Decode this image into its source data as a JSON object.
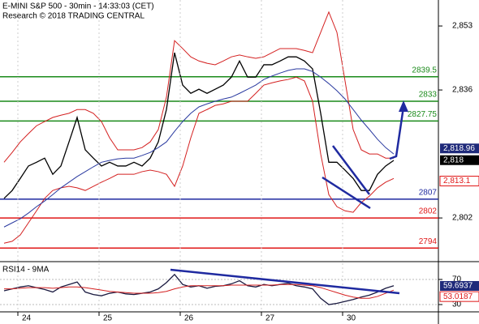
{
  "chart_data": [
    {
      "type": "line",
      "title": "E-MINI S&P 500 - 30min - 14:33:03 (CET)",
      "subtitle": "Research © 2018 TRADING CENTRAL",
      "categories": [
        null,
        null,
        "24",
        null,
        null,
        null,
        null,
        null,
        null,
        null,
        null,
        null,
        "25",
        null,
        null,
        null,
        null,
        null,
        null,
        null,
        null,
        null,
        "26",
        null,
        null,
        null,
        null,
        null,
        null,
        null,
        null,
        null,
        "27",
        null,
        null,
        null,
        null,
        null,
        null,
        null,
        null,
        null,
        "30",
        null,
        null,
        null,
        null,
        null,
        null
      ],
      "series": [
        {
          "color": "#000000",
          "values": [
            2807.2,
            2809.3,
            2812.5,
            2815.8,
            2816.8,
            2817.9,
            2813.6,
            2815.8,
            2822.2,
            2828.7,
            2820.1,
            2817.9,
            2815.8,
            2816.8,
            2815.8,
            2815.8,
            2816.8,
            2815.8,
            2817.9,
            2822.2,
            2830.8,
            2845.9,
            2837.3,
            2835.1,
            2836.2,
            2835.1,
            2836.2,
            2837.3,
            2839.4,
            2843.7,
            2839.4,
            2839.4,
            2842.7,
            2842.7,
            2843.7,
            2844.8,
            2844.8,
            2843.7,
            2841.6,
            2829.8,
            2816.8,
            2816.8,
            2814.7,
            2812.5,
            2809.3,
            2809.3,
            2813.6,
            2815.8,
            2817.3
          ]
        },
        {
          "color": "#d42020",
          "values": [
            2816.8,
            2819.4,
            2822.2,
            2824.4,
            2826.5,
            2827.6,
            2828.7,
            2829.3,
            2829.8,
            2830.8,
            2830.8,
            2829.8,
            2827.6,
            2823.3,
            2820.1,
            2820.1,
            2820.1,
            2820.7,
            2822.2,
            2825.5,
            2834.1,
            2849.1,
            2847.0,
            2844.8,
            2843.7,
            2843.1,
            2842.7,
            2843.7,
            2844.8,
            2845.3,
            2844.8,
            2844.4,
            2844.8,
            2845.9,
            2847.0,
            2847.0,
            2847.0,
            2846.5,
            2845.9,
            2851.3,
            2856.7,
            2851.3,
            2838.4,
            2825.5,
            2820.1,
            2819.0,
            2819.0,
            2817.9,
            2817.9
          ]
        },
        {
          "color": "#d42020",
          "values": [
            2795.3,
            2795.8,
            2797.5,
            2800.7,
            2803.9,
            2807.2,
            2809.3,
            2810.0,
            2810.4,
            2810.0,
            2809.3,
            2810.4,
            2811.5,
            2812.5,
            2813.6,
            2813.6,
            2813.6,
            2814.3,
            2814.7,
            2814.3,
            2813.6,
            2810.4,
            2815.8,
            2823.3,
            2829.8,
            2830.8,
            2831.9,
            2832.3,
            2833.0,
            2833.0,
            2833.0,
            2835.1,
            2837.3,
            2837.9,
            2838.4,
            2838.8,
            2839.4,
            2838.4,
            2833.0,
            2819.0,
            2808.2,
            2805.0,
            2803.9,
            2803.5,
            2806.1,
            2807.8,
            2810.0,
            2811.5,
            2812.5
          ]
        },
        {
          "color": "#2a3aa0",
          "values": [
            2799.6,
            2800.7,
            2801.8,
            2803.3,
            2805.0,
            2806.5,
            2808.2,
            2810.0,
            2811.5,
            2813.0,
            2814.3,
            2815.6,
            2816.8,
            2817.3,
            2817.7,
            2817.9,
            2817.9,
            2818.6,
            2819.4,
            2820.7,
            2822.2,
            2825.0,
            2827.6,
            2829.8,
            2831.5,
            2832.3,
            2833.0,
            2833.6,
            2834.1,
            2835.1,
            2836.2,
            2837.3,
            2838.8,
            2839.7,
            2840.5,
            2841.2,
            2841.6,
            2841.6,
            2840.9,
            2839.4,
            2837.7,
            2835.8,
            2833.6,
            2830.8,
            2828.0,
            2825.5,
            2822.9,
            2820.7,
            2819.0
          ]
        }
      ],
      "levels": [
        {
          "value": 2839.5,
          "color": "#1a8a1a"
        },
        {
          "value": 2833,
          "color": "#1a8a1a"
        },
        {
          "value": 2827.75,
          "color": "#1a8a1a"
        },
        {
          "value": 2807,
          "color": "#1f2aa0"
        },
        {
          "value": 2802,
          "color": "#e01818"
        },
        {
          "value": 2794,
          "color": "#e01818"
        }
      ],
      "tags": [
        {
          "value": 2818.96,
          "label": "2,818.96",
          "color": "#1f2a7a"
        },
        {
          "value": 2818,
          "label": "2,818",
          "color": "#000000"
        },
        {
          "value": 2813.1,
          "label": "2,813.1",
          "color": "#e01818"
        }
      ],
      "ylim": [
        2790.4,
        2859.9
      ],
      "yticks": [
        {
          "value": 2853,
          "label": "2,853"
        },
        {
          "value": 2836,
          "label": "2,836"
        },
        {
          "value": 2802,
          "label": "2,802"
        }
      ]
    },
    {
      "type": "line",
      "title": "RSI14 - 9MA",
      "series": [
        {
          "color": "#1a1a40",
          "values": [
            52,
            55,
            58,
            60,
            57,
            54,
            50,
            58,
            62,
            66,
            50,
            46,
            44,
            48,
            50,
            47,
            46,
            48,
            50,
            55,
            65,
            78,
            62,
            58,
            60,
            56,
            59,
            60,
            63,
            68,
            60,
            58,
            62,
            60,
            62,
            64,
            60,
            58,
            55,
            40,
            30,
            32,
            35,
            38,
            42,
            45,
            50,
            56,
            60
          ]
        },
        {
          "color": "#d42020",
          "values": [
            55,
            55,
            56,
            57,
            57,
            57,
            56,
            57,
            58,
            58,
            57,
            55,
            53,
            51,
            50,
            49,
            48,
            48,
            48,
            49,
            51,
            55,
            58,
            60,
            60,
            60,
            60,
            60,
            61,
            61,
            61,
            61,
            61,
            61,
            62,
            62,
            62,
            61,
            60,
            57,
            53,
            49,
            45,
            42,
            40,
            40,
            43,
            48,
            53
          ]
        }
      ],
      "tags": [
        {
          "value": 59.6937,
          "label": "59.6937",
          "color": "#1f2a7a"
        },
        {
          "value": 53.0187,
          "label": "53.0187",
          "color": "#e01818"
        }
      ],
      "ylim": [
        18.4,
        95.8
      ],
      "yticks": [
        70,
        30
      ]
    }
  ]
}
